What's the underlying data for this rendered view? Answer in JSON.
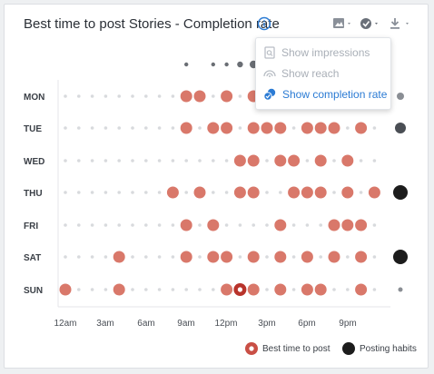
{
  "header": {
    "title": "Best time to post Stories - Completion rate",
    "info_icon": "info-icon",
    "toolbar": {
      "image_icon": "image-icon",
      "metric_icon": "metric-toggle-icon",
      "download_icon": "download-icon"
    }
  },
  "menu": {
    "items": [
      {
        "label": "Show impressions",
        "icon": "impressions-icon",
        "state": "disabled"
      },
      {
        "label": "Show reach",
        "icon": "reach-icon",
        "state": "disabled"
      },
      {
        "label": "Show completion rate",
        "icon": "completion-icon",
        "state": "active"
      }
    ]
  },
  "chart_data": {
    "type": "heatmap",
    "title": "Best time to post Stories - Completion rate",
    "days": [
      "MON",
      "TUE",
      "WED",
      "THU",
      "FRI",
      "SAT",
      "SUN"
    ],
    "hour_tick_labels": [
      "12am",
      "3am",
      "6am",
      "9am",
      "12pm",
      "3pm",
      "6pm",
      "9pm"
    ],
    "hours_per_day": 24,
    "best_time_hours": {
      "MON": [
        9,
        10,
        12,
        14
      ],
      "TUE": [
        9,
        11,
        12,
        14,
        15,
        16,
        18,
        19,
        20,
        22
      ],
      "WED": [
        13,
        14,
        16,
        17,
        19,
        21
      ],
      "THU": [
        8,
        10,
        13,
        14,
        17,
        18,
        19,
        21,
        23
      ],
      "FRI": [
        9,
        11,
        16,
        20,
        21,
        22
      ],
      "SAT": [
        4,
        9,
        11,
        12,
        14,
        16,
        18,
        20,
        22
      ],
      "SUN": [
        0,
        4,
        12,
        14,
        16,
        18,
        19,
        22
      ]
    },
    "highlight": {
      "day": "SUN",
      "hour": 13
    },
    "hour_totals_dots": [
      {
        "hour": 9,
        "size": "small"
      },
      {
        "hour": 11,
        "size": "small"
      },
      {
        "hour": 12,
        "size": "small"
      },
      {
        "hour": 13,
        "size": "medium"
      },
      {
        "hour": 14,
        "size": "large"
      }
    ],
    "day_posting_habits": {
      "MON": "small",
      "TUE": "medium",
      "WED": "none",
      "THU": "large",
      "FRI": "none",
      "SAT": "large",
      "SUN": "tiny"
    },
    "legend": [
      {
        "label": "Best time to post",
        "color": "#c94f45"
      },
      {
        "label": "Posting habits",
        "color": "#1c1c1c"
      }
    ]
  },
  "colors": {
    "accent": "#2b7bd4",
    "bubble": "#d9786a",
    "grid_dot": "#d8dadd",
    "habit": "#1c1c1c"
  }
}
